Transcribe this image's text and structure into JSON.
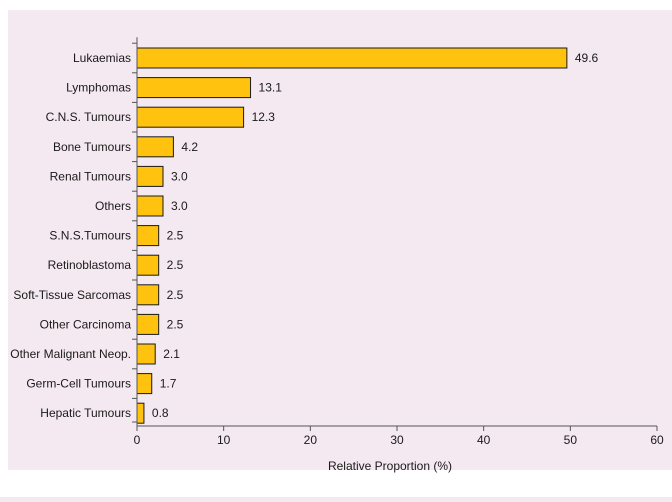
{
  "chart_data": {
    "type": "bar",
    "orientation": "horizontal",
    "categories": [
      "Lukaemias",
      "Lymphomas",
      "C.N.S. Tumours",
      "Bone Tumours",
      "Renal Tumours",
      "Others",
      "S.N.S.Tumours",
      "Retinoblastoma",
      "Soft-Tissue Sarcomas",
      "Other Carcinoma",
      "Other Malignant Neop.",
      "Germ-Cell Tumours",
      "Hepatic Tumours"
    ],
    "values": [
      49.6,
      13.1,
      12.3,
      4.2,
      3.0,
      3.0,
      2.5,
      2.5,
      2.5,
      2.5,
      2.1,
      1.7,
      0.8
    ],
    "value_labels": [
      "49.6",
      "13.1",
      "12.3",
      "4.2",
      "3.0",
      "3.0",
      "2.5",
      "2.5",
      "2.5",
      "2.5",
      "2.1",
      "1.7",
      "0.8"
    ],
    "xlabel": "Relative Proportion (%)",
    "xlim": [
      0,
      60
    ],
    "xticks": [
      0,
      10,
      20,
      30,
      40,
      50,
      60
    ],
    "grid": false,
    "legend": "none",
    "colors": {
      "bar_fill": "#ffc20e",
      "bar_stroke": "#1a1a1a",
      "plot_background": "#f4e9f0",
      "page_background": "#ffffff",
      "axis": "#555555"
    }
  }
}
